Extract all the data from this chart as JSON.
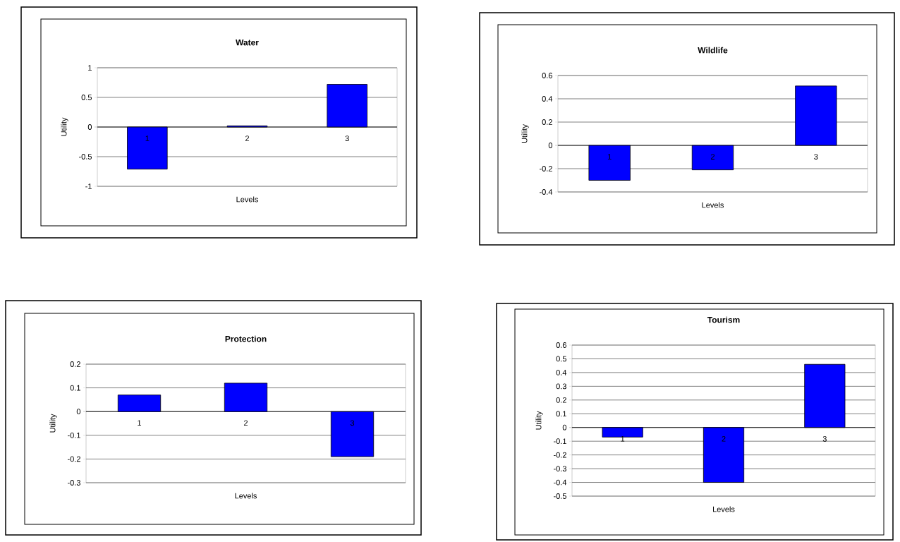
{
  "chart_data": [
    {
      "type": "bar",
      "title": "Water",
      "xlabel": "Levels",
      "ylabel": "Utility",
      "categories": [
        "1",
        "2",
        "3"
      ],
      "values": [
        -0.71,
        0.02,
        0.72
      ],
      "color": "#0000ff",
      "ylim": [
        -1,
        1
      ],
      "yticks": [
        -1,
        -0.5,
        0,
        0.5,
        1
      ],
      "grid": "y"
    },
    {
      "type": "bar",
      "title": "Wildlife",
      "xlabel": "Levels",
      "ylabel": "Utility",
      "categories": [
        "1",
        "2",
        "3"
      ],
      "values": [
        -0.3,
        -0.21,
        0.51
      ],
      "color": "#0000ff",
      "ylim": [
        -0.4,
        0.6
      ],
      "yticks": [
        -0.4,
        -0.2,
        0,
        0.2,
        0.4,
        0.6
      ],
      "grid": "y"
    },
    {
      "type": "bar",
      "title": "Protection",
      "xlabel": "Levels",
      "ylabel": "Utility",
      "categories": [
        "1",
        "2",
        "3"
      ],
      "values": [
        0.07,
        0.12,
        -0.19
      ],
      "color": "#0000ff",
      "ylim": [
        -0.3,
        0.2
      ],
      "yticks": [
        -0.3,
        -0.2,
        -0.1,
        0,
        0.1,
        0.2
      ],
      "grid": "y"
    },
    {
      "type": "bar",
      "title": "Tourism",
      "xlabel": "Levels",
      "ylabel": "Utility",
      "categories": [
        "1",
        "2",
        "3"
      ],
      "values": [
        -0.07,
        -0.4,
        0.46
      ],
      "color": "#0000ff",
      "ylim": [
        -0.5,
        0.6
      ],
      "yticks": [
        -0.5,
        -0.4,
        -0.3,
        -0.2,
        -0.1,
        0,
        0.1,
        0.2,
        0.3,
        0.4,
        0.5,
        0.6
      ],
      "grid": "y"
    }
  ]
}
